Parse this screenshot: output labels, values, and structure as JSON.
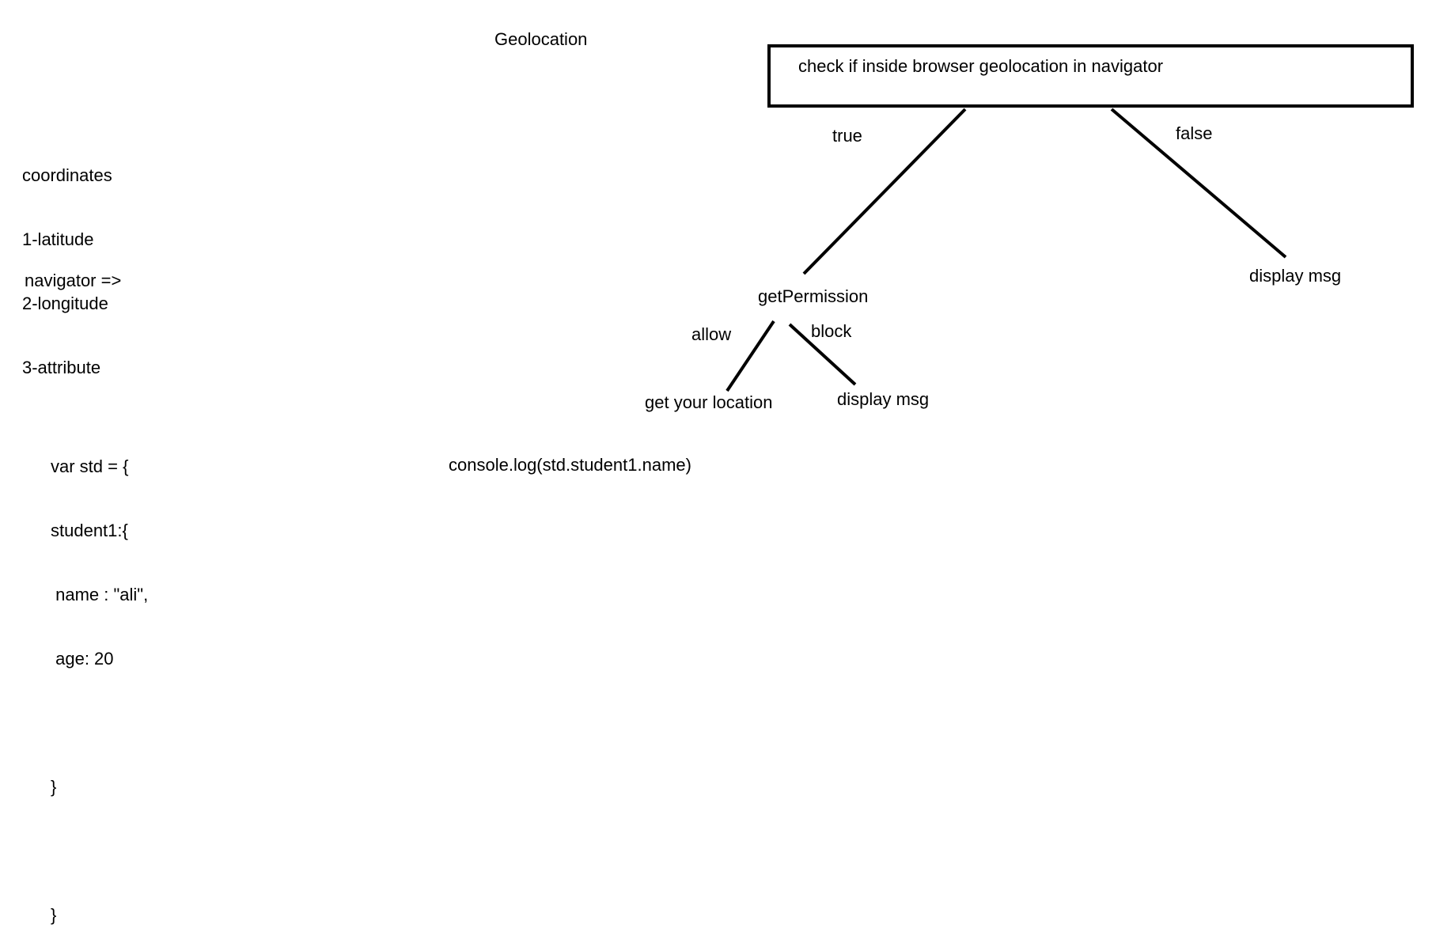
{
  "title": "Geolocation",
  "coordinates_notes": [
    "coordinates",
    "1-latitude",
    "2-longitude",
    "3-attribute"
  ],
  "navigator_note": "navigator =>",
  "code_block": [
    "var std = {",
    "student1:{",
    " name : \"ali\",",
    " age: 20",
    "",
    "}",
    "",
    "}"
  ],
  "console_line": "console.log(std.student1.name)",
  "flowchart": {
    "root_box": "check if inside browser geolocation in navigator",
    "true_label": "true",
    "false_label": "false",
    "true_node": "getPermission",
    "false_node": "display msg",
    "allow_label": "allow",
    "block_label": "block",
    "allow_node": "get your location",
    "block_node": "display msg"
  },
  "colors": {
    "background": "#ffffff",
    "ink": "#000000"
  }
}
